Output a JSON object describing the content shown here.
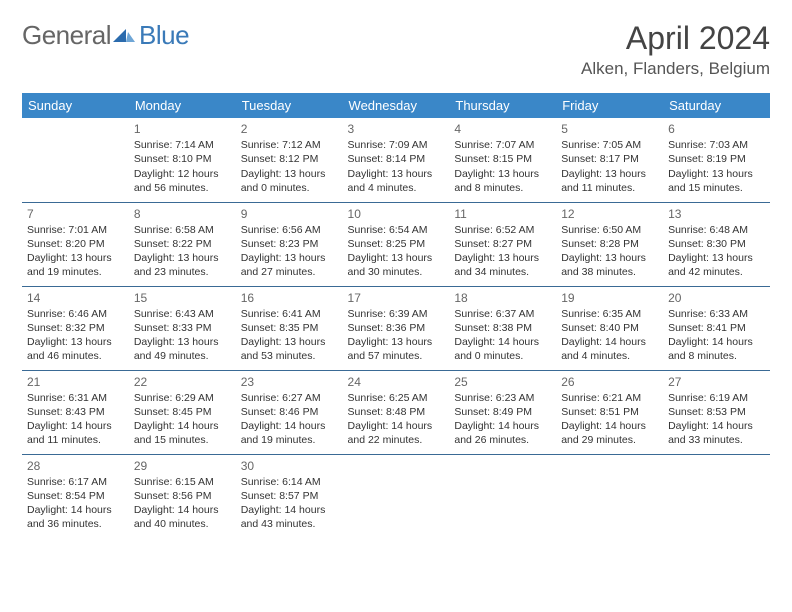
{
  "logo": {
    "text1": "General",
    "text2": "Blue"
  },
  "title": "April 2024",
  "location": "Alken, Flanders, Belgium",
  "header_bg": "#3a87c8",
  "border_color": "#3a6a95",
  "days": [
    "Sunday",
    "Monday",
    "Tuesday",
    "Wednesday",
    "Thursday",
    "Friday",
    "Saturday"
  ],
  "weeks": [
    [
      null,
      {
        "n": "1",
        "sr": "7:14 AM",
        "ss": "8:10 PM",
        "dl": "12 hours and 56 minutes."
      },
      {
        "n": "2",
        "sr": "7:12 AM",
        "ss": "8:12 PM",
        "dl": "13 hours and 0 minutes."
      },
      {
        "n": "3",
        "sr": "7:09 AM",
        "ss": "8:14 PM",
        "dl": "13 hours and 4 minutes."
      },
      {
        "n": "4",
        "sr": "7:07 AM",
        "ss": "8:15 PM",
        "dl": "13 hours and 8 minutes."
      },
      {
        "n": "5",
        "sr": "7:05 AM",
        "ss": "8:17 PM",
        "dl": "13 hours and 11 minutes."
      },
      {
        "n": "6",
        "sr": "7:03 AM",
        "ss": "8:19 PM",
        "dl": "13 hours and 15 minutes."
      }
    ],
    [
      {
        "n": "7",
        "sr": "7:01 AM",
        "ss": "8:20 PM",
        "dl": "13 hours and 19 minutes."
      },
      {
        "n": "8",
        "sr": "6:58 AM",
        "ss": "8:22 PM",
        "dl": "13 hours and 23 minutes."
      },
      {
        "n": "9",
        "sr": "6:56 AM",
        "ss": "8:23 PM",
        "dl": "13 hours and 27 minutes."
      },
      {
        "n": "10",
        "sr": "6:54 AM",
        "ss": "8:25 PM",
        "dl": "13 hours and 30 minutes."
      },
      {
        "n": "11",
        "sr": "6:52 AM",
        "ss": "8:27 PM",
        "dl": "13 hours and 34 minutes."
      },
      {
        "n": "12",
        "sr": "6:50 AM",
        "ss": "8:28 PM",
        "dl": "13 hours and 38 minutes."
      },
      {
        "n": "13",
        "sr": "6:48 AM",
        "ss": "8:30 PM",
        "dl": "13 hours and 42 minutes."
      }
    ],
    [
      {
        "n": "14",
        "sr": "6:46 AM",
        "ss": "8:32 PM",
        "dl": "13 hours and 46 minutes."
      },
      {
        "n": "15",
        "sr": "6:43 AM",
        "ss": "8:33 PM",
        "dl": "13 hours and 49 minutes."
      },
      {
        "n": "16",
        "sr": "6:41 AM",
        "ss": "8:35 PM",
        "dl": "13 hours and 53 minutes."
      },
      {
        "n": "17",
        "sr": "6:39 AM",
        "ss": "8:36 PM",
        "dl": "13 hours and 57 minutes."
      },
      {
        "n": "18",
        "sr": "6:37 AM",
        "ss": "8:38 PM",
        "dl": "14 hours and 0 minutes."
      },
      {
        "n": "19",
        "sr": "6:35 AM",
        "ss": "8:40 PM",
        "dl": "14 hours and 4 minutes."
      },
      {
        "n": "20",
        "sr": "6:33 AM",
        "ss": "8:41 PM",
        "dl": "14 hours and 8 minutes."
      }
    ],
    [
      {
        "n": "21",
        "sr": "6:31 AM",
        "ss": "8:43 PM",
        "dl": "14 hours and 11 minutes."
      },
      {
        "n": "22",
        "sr": "6:29 AM",
        "ss": "8:45 PM",
        "dl": "14 hours and 15 minutes."
      },
      {
        "n": "23",
        "sr": "6:27 AM",
        "ss": "8:46 PM",
        "dl": "14 hours and 19 minutes."
      },
      {
        "n": "24",
        "sr": "6:25 AM",
        "ss": "8:48 PM",
        "dl": "14 hours and 22 minutes."
      },
      {
        "n": "25",
        "sr": "6:23 AM",
        "ss": "8:49 PM",
        "dl": "14 hours and 26 minutes."
      },
      {
        "n": "26",
        "sr": "6:21 AM",
        "ss": "8:51 PM",
        "dl": "14 hours and 29 minutes."
      },
      {
        "n": "27",
        "sr": "6:19 AM",
        "ss": "8:53 PM",
        "dl": "14 hours and 33 minutes."
      }
    ],
    [
      {
        "n": "28",
        "sr": "6:17 AM",
        "ss": "8:54 PM",
        "dl": "14 hours and 36 minutes."
      },
      {
        "n": "29",
        "sr": "6:15 AM",
        "ss": "8:56 PM",
        "dl": "14 hours and 40 minutes."
      },
      {
        "n": "30",
        "sr": "6:14 AM",
        "ss": "8:57 PM",
        "dl": "14 hours and 43 minutes."
      },
      null,
      null,
      null,
      null
    ]
  ],
  "labels": {
    "sunrise": "Sunrise:",
    "sunset": "Sunset:",
    "daylight": "Daylight:"
  }
}
